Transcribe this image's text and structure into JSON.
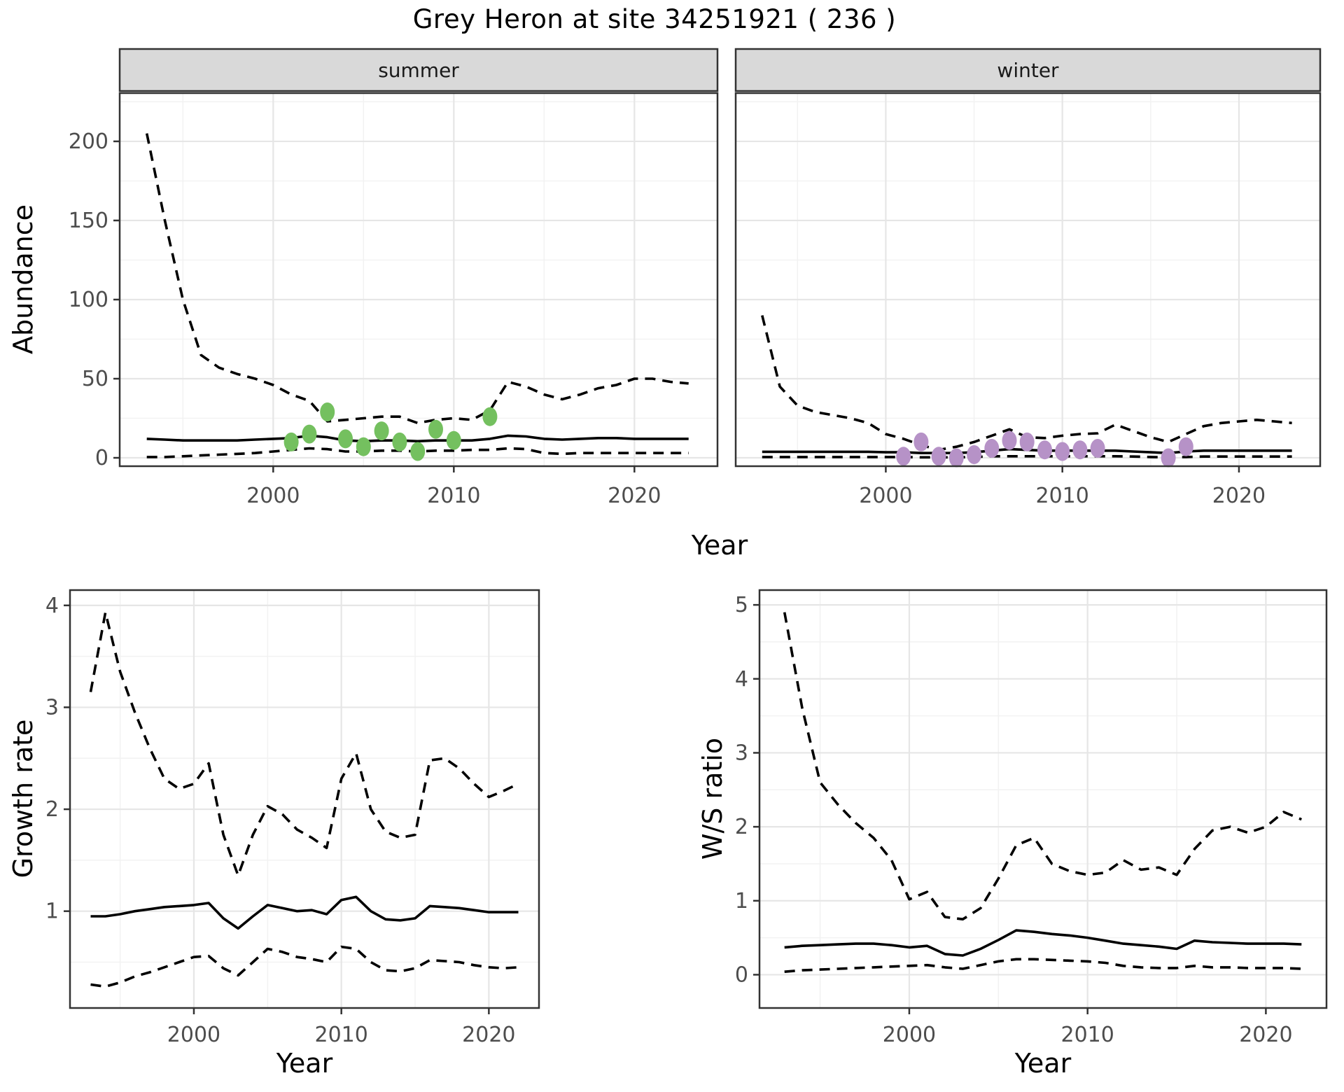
{
  "title": "Grey Heron at site 34251921 ( 236 )",
  "colors": {
    "summer_points": "#74c05f",
    "winter_points": "#b692c7",
    "line": "#000000",
    "strip_bg": "#d9d9d9",
    "strip_text": "#1a1a1a",
    "panel_border": "#333333",
    "panel_bg": "#ffffff",
    "grid_major": "#e6e6e6",
    "grid_minor": "#f2f2f2",
    "tick_text": "#4d4d4d",
    "axis_title": "#000000"
  },
  "chart_data": [
    {
      "id": "abundance_summer",
      "type": "line",
      "facet_label": "summer",
      "ylabel": "Abundance",
      "xlabel": "Year",
      "xlim": [
        1991.5,
        2024.6
      ],
      "ylim": [
        -5.3,
        230.5
      ],
      "xticks": [
        2000,
        2010,
        2020
      ],
      "xminor": [
        1995,
        2005,
        2015
      ],
      "yticks": [
        0,
        50,
        100,
        150,
        200
      ],
      "yminor": [
        25,
        75,
        125,
        175,
        225
      ],
      "x_years": [
        1993,
        1994,
        1995,
        1996,
        1997,
        1998,
        1999,
        2000,
        2001,
        2002,
        2003,
        2004,
        2005,
        2006,
        2007,
        2008,
        2009,
        2010,
        2011,
        2012,
        2013,
        2014,
        2015,
        2016,
        2017,
        2018,
        2019,
        2020,
        2021,
        2022,
        2023
      ],
      "series": [
        {
          "name": "upper_95ci",
          "style": "dashed",
          "values": [
            205,
            150,
            100,
            65,
            57,
            53,
            50,
            46,
            40,
            36,
            23,
            24,
            25,
            26,
            26,
            22,
            24,
            25,
            24,
            30,
            48,
            45,
            40,
            37,
            40,
            44,
            46,
            50,
            50,
            48,
            47
          ]
        },
        {
          "name": "median",
          "style": "solid",
          "values": [
            12,
            11.5,
            11,
            11,
            11,
            11,
            11.5,
            12,
            12.5,
            14,
            13,
            11,
            10.5,
            11,
            11,
            10.5,
            11,
            11,
            11,
            12,
            14,
            13.5,
            12,
            11.5,
            12,
            12.5,
            12.5,
            12,
            12,
            12,
            12
          ]
        },
        {
          "name": "lower_95ci",
          "style": "dashed",
          "values": [
            0.5,
            0.5,
            1,
            1.5,
            2,
            2.5,
            3,
            4,
            5,
            6,
            5.5,
            4,
            4,
            4.5,
            4.5,
            4,
            4.5,
            4.5,
            5,
            5,
            6,
            5.5,
            3,
            2.5,
            3,
            3,
            3,
            3,
            3,
            3,
            3
          ]
        }
      ],
      "points": {
        "name": "summer_observations",
        "color_key": "summer_points",
        "x": [
          2001,
          2002,
          2003,
          2004,
          2005,
          2006,
          2007,
          2008,
          2009,
          2010,
          2012
        ],
        "y": [
          10,
          15,
          29,
          12,
          7,
          17,
          10,
          4,
          18,
          11,
          26
        ]
      }
    },
    {
      "id": "abundance_winter",
      "type": "line",
      "facet_label": "winter",
      "ylabel": "Abundance",
      "xlabel": "Year",
      "xlim": [
        1991.5,
        2024.6
      ],
      "ylim": [
        -5.3,
        230.5
      ],
      "xticks": [
        2000,
        2010,
        2020
      ],
      "xminor": [
        1995,
        2005,
        2015
      ],
      "yticks": [
        0,
        50,
        100,
        150,
        200
      ],
      "yminor": [
        25,
        75,
        125,
        175,
        225
      ],
      "x_years": [
        1993,
        1994,
        1995,
        1996,
        1997,
        1998,
        1999,
        2000,
        2001,
        2002,
        2003,
        2004,
        2005,
        2006,
        2007,
        2008,
        2009,
        2010,
        2011,
        2012,
        2013,
        2014,
        2015,
        2016,
        2017,
        2018,
        2019,
        2020,
        2021,
        2022,
        2023
      ],
      "series": [
        {
          "name": "upper_95ci",
          "style": "dashed",
          "values": [
            90,
            45,
            33,
            29,
            27,
            25,
            22,
            15,
            12,
            8,
            5,
            7,
            10,
            14,
            18,
            13,
            12.5,
            14,
            15,
            15.5,
            21,
            17,
            13,
            10,
            15,
            20,
            22,
            23,
            24,
            23,
            22
          ]
        },
        {
          "name": "median",
          "style": "solid",
          "values": [
            3.8,
            3.8,
            3.8,
            3.8,
            3.8,
            3.8,
            3.8,
            3.5,
            3.5,
            3,
            3,
            3,
            3.5,
            4.5,
            5.5,
            5,
            4.5,
            4.5,
            4.5,
            4.5,
            4.5,
            4,
            3.5,
            3,
            4,
            4.5,
            4.5,
            4.5,
            4.5,
            4.5,
            4.5
          ]
        },
        {
          "name": "lower_95ci",
          "style": "dashed",
          "values": [
            0.5,
            0.5,
            0.5,
            0.5,
            0.5,
            0.5,
            0.5,
            0.5,
            0.5,
            0.3,
            0.3,
            0.3,
            0.5,
            1,
            1,
            1,
            1,
            1,
            1,
            1,
            1,
            0.8,
            0.5,
            0.3,
            0.5,
            0.8,
            0.8,
            0.8,
            0.8,
            0.8,
            0.8
          ]
        }
      ],
      "points": {
        "name": "winter_observations",
        "color_key": "winter_points",
        "x": [
          2001,
          2002,
          2003,
          2004,
          2005,
          2006,
          2007,
          2008,
          2009,
          2010,
          2011,
          2012,
          2016,
          2017
        ],
        "y": [
          1,
          10,
          1,
          0,
          2,
          6,
          11,
          10,
          5,
          4,
          5,
          6,
          0,
          7
        ]
      }
    },
    {
      "id": "growth_rate",
      "type": "line",
      "facet_label": "",
      "ylabel": "Growth rate",
      "xlabel": "Year",
      "xlim": [
        1991.6,
        2023.4
      ],
      "ylim": [
        0.05,
        4.15
      ],
      "xticks": [
        2000,
        2010,
        2020
      ],
      "xminor": [
        1995,
        2005,
        2015
      ],
      "yticks": [
        1,
        2,
        3,
        4
      ],
      "yminor": [
        0.5,
        1.5,
        2.5,
        3.5
      ],
      "x_years": [
        1993,
        1994,
        1995,
        1996,
        1997,
        1998,
        1999,
        2000,
        2001,
        2002,
        2003,
        2004,
        2005,
        2006,
        2007,
        2008,
        2009,
        2010,
        2011,
        2012,
        2013,
        2014,
        2015,
        2016,
        2017,
        2018,
        2019,
        2020,
        2021,
        2022
      ],
      "series": [
        {
          "name": "upper_95ci",
          "style": "dashed",
          "values": [
            3.15,
            3.93,
            3.35,
            2.95,
            2.6,
            2.3,
            2.2,
            2.25,
            2.45,
            1.75,
            1.35,
            1.75,
            2.03,
            1.95,
            1.8,
            1.72,
            1.62,
            2.3,
            2.55,
            2.0,
            1.78,
            1.72,
            1.75,
            2.48,
            2.5,
            2.4,
            2.25,
            2.12,
            2.18,
            2.25
          ]
        },
        {
          "name": "median",
          "style": "solid",
          "values": [
            0.95,
            0.95,
            0.97,
            1.0,
            1.02,
            1.04,
            1.05,
            1.06,
            1.08,
            0.93,
            0.83,
            0.95,
            1.06,
            1.03,
            1.0,
            1.01,
            0.97,
            1.11,
            1.14,
            1.0,
            0.92,
            0.91,
            0.93,
            1.05,
            1.04,
            1.03,
            1.01,
            0.99,
            0.99,
            0.99
          ]
        },
        {
          "name": "lower_95ci",
          "style": "dashed",
          "values": [
            0.28,
            0.26,
            0.3,
            0.36,
            0.4,
            0.45,
            0.5,
            0.55,
            0.56,
            0.44,
            0.37,
            0.5,
            0.63,
            0.6,
            0.55,
            0.53,
            0.5,
            0.65,
            0.63,
            0.5,
            0.42,
            0.41,
            0.44,
            0.52,
            0.51,
            0.5,
            0.47,
            0.45,
            0.44,
            0.45
          ]
        }
      ],
      "points": null
    },
    {
      "id": "ws_ratio",
      "type": "line",
      "facet_label": "",
      "ylabel": "W/S ratio",
      "xlabel": "Year",
      "xlim": [
        1991.6,
        2023.4
      ],
      "ylim": [
        -0.45,
        5.2
      ],
      "xticks": [
        2000,
        2010,
        2020
      ],
      "xminor": [
        1995,
        2005,
        2015
      ],
      "yticks": [
        0,
        1,
        2,
        3,
        4,
        5
      ],
      "yminor": [
        0.5,
        1.5,
        2.5,
        3.5,
        4.5
      ],
      "x_years": [
        1993,
        1994,
        1995,
        1996,
        1997,
        1998,
        1999,
        2000,
        2001,
        2002,
        2003,
        2004,
        2005,
        2006,
        2007,
        2008,
        2009,
        2010,
        2011,
        2012,
        2013,
        2014,
        2015,
        2016,
        2017,
        2018,
        2019,
        2020,
        2021,
        2022
      ],
      "series": [
        {
          "name": "upper_95ci",
          "style": "dashed",
          "values": [
            4.9,
            3.6,
            2.6,
            2.3,
            2.05,
            1.85,
            1.55,
            1.02,
            1.12,
            0.78,
            0.75,
            0.9,
            1.3,
            1.75,
            1.85,
            1.5,
            1.4,
            1.35,
            1.38,
            1.55,
            1.42,
            1.45,
            1.35,
            1.7,
            1.95,
            2.0,
            1.92,
            2.0,
            2.2,
            2.1
          ]
        },
        {
          "name": "median",
          "style": "solid",
          "values": [
            0.37,
            0.39,
            0.4,
            0.41,
            0.42,
            0.42,
            0.4,
            0.37,
            0.39,
            0.28,
            0.26,
            0.35,
            0.47,
            0.6,
            0.58,
            0.55,
            0.53,
            0.5,
            0.46,
            0.42,
            0.4,
            0.38,
            0.35,
            0.46,
            0.44,
            0.43,
            0.42,
            0.42,
            0.42,
            0.41
          ]
        },
        {
          "name": "lower_95ci",
          "style": "dashed",
          "values": [
            0.04,
            0.06,
            0.07,
            0.08,
            0.09,
            0.1,
            0.11,
            0.12,
            0.13,
            0.1,
            0.08,
            0.13,
            0.18,
            0.21,
            0.21,
            0.2,
            0.19,
            0.18,
            0.16,
            0.12,
            0.1,
            0.09,
            0.09,
            0.12,
            0.1,
            0.1,
            0.09,
            0.09,
            0.09,
            0.08
          ]
        }
      ],
      "points": null
    }
  ]
}
